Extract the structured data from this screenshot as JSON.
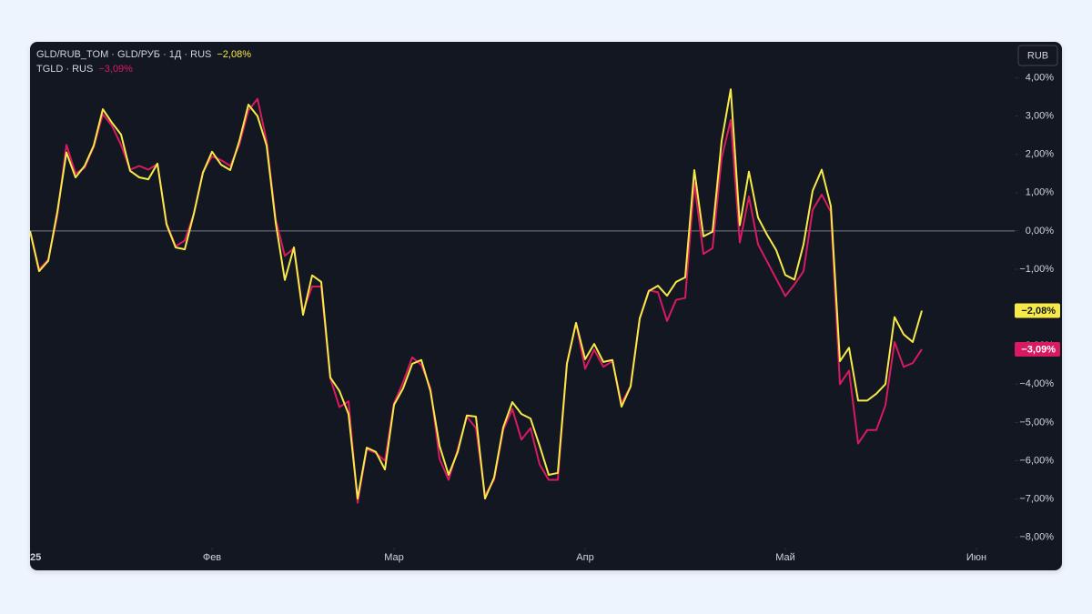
{
  "chart_data": {
    "type": "line",
    "currency": "RUB",
    "x": [
      0,
      1,
      2,
      3,
      4,
      5,
      6,
      7,
      8,
      9,
      10,
      11,
      12,
      13,
      14,
      15,
      16,
      17,
      18,
      19,
      20,
      21,
      22,
      23,
      24,
      25,
      26,
      27,
      28,
      29,
      30,
      31,
      32,
      33,
      34,
      35,
      36,
      37,
      38,
      39,
      40,
      41,
      42,
      43,
      44,
      45,
      46,
      47,
      48,
      49,
      50,
      51,
      52,
      53,
      54,
      55,
      56,
      57,
      58,
      59,
      60,
      61,
      62,
      63,
      64,
      65,
      66,
      67,
      68,
      69,
      70,
      71,
      72,
      73,
      74,
      75,
      76,
      77,
      78,
      79,
      80,
      81,
      82,
      83,
      84,
      85,
      86,
      87,
      88,
      89,
      90,
      91,
      92,
      93,
      94,
      95,
      96,
      97,
      98
    ],
    "xlim": [
      0,
      108.2
    ],
    "xticks": [
      {
        "value": 0,
        "label": "25"
      },
      {
        "value": 20,
        "label": "Фев"
      },
      {
        "value": 40,
        "label": "Мар"
      },
      {
        "value": 61,
        "label": "Апр"
      },
      {
        "value": 83,
        "label": "Май"
      },
      {
        "value": 104,
        "label": "Июн"
      }
    ],
    "ylim": [
      -8.27,
      4.94
    ],
    "yticks": [
      {
        "value": 4,
        "label": "4,00%"
      },
      {
        "value": 3,
        "label": "3,00%"
      },
      {
        "value": 2,
        "label": "2,00%"
      },
      {
        "value": 1,
        "label": "1,00%"
      },
      {
        "value": 0,
        "label": "0,00%"
      },
      {
        "value": -1,
        "label": "−1,00%"
      },
      {
        "value": -2,
        "label": "−2,00%"
      },
      {
        "value": -3,
        "label": "−3,00%"
      },
      {
        "value": -4,
        "label": "−4,00%"
      },
      {
        "value": -5,
        "label": "−5,00%"
      },
      {
        "value": -6,
        "label": "−6,00%"
      },
      {
        "value": -7,
        "label": "−7,00%"
      },
      {
        "value": -8,
        "label": "−8,00%"
      }
    ],
    "reference_line": 0,
    "series": [
      {
        "name": "TGLD · RUS",
        "color": "#d81b60",
        "last_value_label": "−3,09%",
        "values": [
          0,
          -1.0,
          -0.75,
          0.4,
          2.25,
          1.5,
          1.65,
          2.2,
          3.05,
          2.75,
          2.25,
          1.6,
          1.7,
          1.6,
          1.75,
          0.2,
          -0.4,
          -0.25,
          0.45,
          1.55,
          1.95,
          1.85,
          1.7,
          2.25,
          3.15,
          3.45,
          2.35,
          0.3,
          -0.65,
          -0.45,
          -2.1,
          -1.45,
          -1.45,
          -3.85,
          -4.6,
          -4.45,
          -7.1,
          -5.7,
          -5.8,
          -6.0,
          -4.5,
          -3.95,
          -3.3,
          -3.5,
          -4.1,
          -5.95,
          -6.5,
          -5.7,
          -4.85,
          -5.15,
          -6.9,
          -6.5,
          -5.2,
          -4.65,
          -5.45,
          -5.15,
          -6.1,
          -6.5,
          -6.5,
          -3.45,
          -2.4,
          -3.6,
          -3.1,
          -3.55,
          -3.4,
          -4.5,
          -4.05,
          -2.3,
          -1.55,
          -1.6,
          -2.35,
          -1.8,
          -1.75,
          1.25,
          -0.6,
          -0.45,
          1.9,
          2.9,
          -0.3,
          0.9,
          -0.35,
          -0.8,
          -1.25,
          -1.7,
          -1.4,
          -1.05,
          0.55,
          0.95,
          0.5,
          -4.0,
          -3.65,
          -5.55,
          -5.2,
          -5.2,
          -4.55,
          -2.9,
          -3.55,
          -3.45,
          -3.09
        ]
      },
      {
        "name": "GLD/RUB_TOM · GLD/РУБ · 1Д · RUS",
        "color": "#f7ea48",
        "last_value_label": "−2,08%",
        "values": [
          0,
          -1.05,
          -0.78,
          0.5,
          2.05,
          1.4,
          1.7,
          2.23,
          3.18,
          2.83,
          2.52,
          1.57,
          1.4,
          1.35,
          1.76,
          0.17,
          -0.43,
          -0.48,
          0.45,
          1.52,
          2.07,
          1.73,
          1.59,
          2.35,
          3.3,
          3.0,
          2.23,
          0.21,
          -1.28,
          -0.43,
          -2.19,
          -1.16,
          -1.33,
          -3.83,
          -4.18,
          -4.78,
          -6.99,
          -5.66,
          -5.77,
          -6.23,
          -4.54,
          -4.11,
          -3.47,
          -3.37,
          -4.18,
          -5.61,
          -6.37,
          -5.77,
          -4.82,
          -4.85,
          -6.99,
          -6.44,
          -5.13,
          -4.47,
          -4.78,
          -4.9,
          -5.61,
          -6.37,
          -6.32,
          -3.47,
          -2.4,
          -3.35,
          -2.95,
          -3.42,
          -3.37,
          -4.59,
          -4.06,
          -2.28,
          -1.57,
          -1.43,
          -1.69,
          -1.33,
          -1.21,
          1.59,
          -0.14,
          -0.02,
          2.35,
          3.7,
          0.15,
          1.55,
          0.35,
          -0.1,
          -0.5,
          -1.15,
          -1.27,
          -0.35,
          1.05,
          1.6,
          0.65,
          -3.4,
          -3.05,
          -4.43,
          -4.43,
          -4.25,
          -4.0,
          -2.25,
          -2.7,
          -2.9,
          -2.08
        ]
      }
    ]
  }
}
